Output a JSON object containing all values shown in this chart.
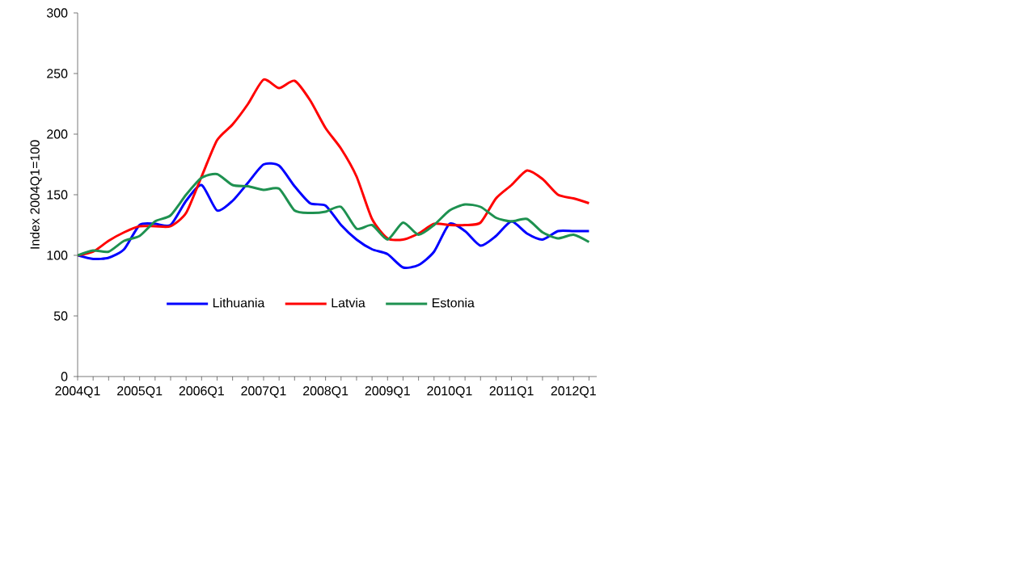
{
  "chart_data": {
    "type": "line",
    "ylabel": "Index 2004Q1=100",
    "categories": [
      "2004Q1",
      null,
      null,
      null,
      "2005Q1",
      null,
      null,
      null,
      "2006Q1",
      null,
      null,
      null,
      "2007Q1",
      null,
      null,
      null,
      "2008Q1",
      null,
      null,
      null,
      "2009Q1",
      null,
      null,
      null,
      "2010Q1",
      null,
      null,
      null,
      "2011Q1",
      null,
      null,
      null,
      "2012Q1",
      null
    ],
    "series": [
      {
        "name": "Lithuania",
        "color": "#0000ff",
        "values": [
          100,
          97,
          98,
          105,
          125,
          126,
          125,
          145,
          158,
          137,
          145,
          160,
          175,
          174,
          157,
          143,
          141,
          125,
          113,
          105,
          101,
          90,
          92,
          103,
          126,
          120,
          108,
          116,
          128,
          118,
          113,
          120,
          120,
          120
        ]
      },
      {
        "name": "Latvia",
        "color": "#ff0000",
        "values": [
          100,
          103,
          112,
          119,
          124,
          124,
          124,
          135,
          165,
          195,
          208,
          225,
          245,
          238,
          244,
          228,
          205,
          188,
          165,
          130,
          114,
          113,
          118,
          126,
          125,
          125,
          127,
          147,
          158,
          170,
          163,
          150,
          147,
          143
        ]
      },
      {
        "name": "Estonia",
        "color": "#1e9150",
        "values": [
          100,
          104,
          103,
          112,
          116,
          128,
          133,
          150,
          164,
          167,
          158,
          157,
          154,
          155,
          137,
          135,
          136,
          140,
          122,
          125,
          113,
          127,
          117,
          125,
          137,
          142,
          140,
          131,
          128,
          130,
          119,
          114,
          117,
          111
        ]
      }
    ],
    "ylim": [
      0,
      300
    ],
    "yticks": [
      0,
      50,
      100,
      150,
      200,
      250,
      300
    ],
    "grid": false,
    "legend": "bottom",
    "marker": "none",
    "line_style": "solid"
  }
}
